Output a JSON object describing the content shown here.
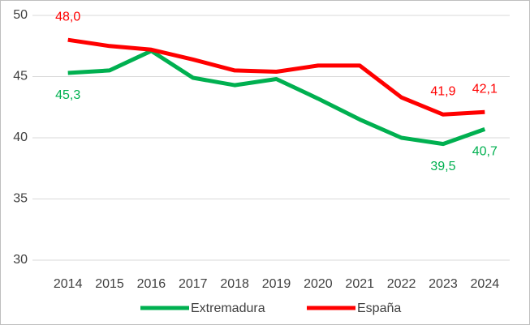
{
  "chart_data": {
    "type": "line",
    "categories": [
      "2014",
      "2015",
      "2016",
      "2017",
      "2018",
      "2019",
      "2020",
      "2021",
      "2022",
      "2023",
      "2024"
    ],
    "series": [
      {
        "name": "Extremadura",
        "color": "#00b050",
        "values": [
          45.3,
          45.5,
          47.1,
          44.9,
          44.3,
          44.8,
          43.2,
          41.5,
          40.0,
          39.5,
          40.7
        ],
        "value_labels": [
          "45,3",
          null,
          null,
          null,
          null,
          null,
          null,
          null,
          null,
          "39,5",
          "40,7"
        ]
      },
      {
        "name": "España",
        "color": "#ff0000",
        "values": [
          48.0,
          47.5,
          47.2,
          46.4,
          45.5,
          45.4,
          45.9,
          45.9,
          43.3,
          41.9,
          42.1
        ],
        "value_labels": [
          "48,0",
          null,
          null,
          null,
          null,
          null,
          null,
          null,
          null,
          "41,9",
          "42,1"
        ]
      }
    ],
    "ylim": [
      30,
      50
    ],
    "yticks": [
      30,
      35,
      40,
      45,
      50
    ],
    "grid": true,
    "legend": "bottom"
  }
}
